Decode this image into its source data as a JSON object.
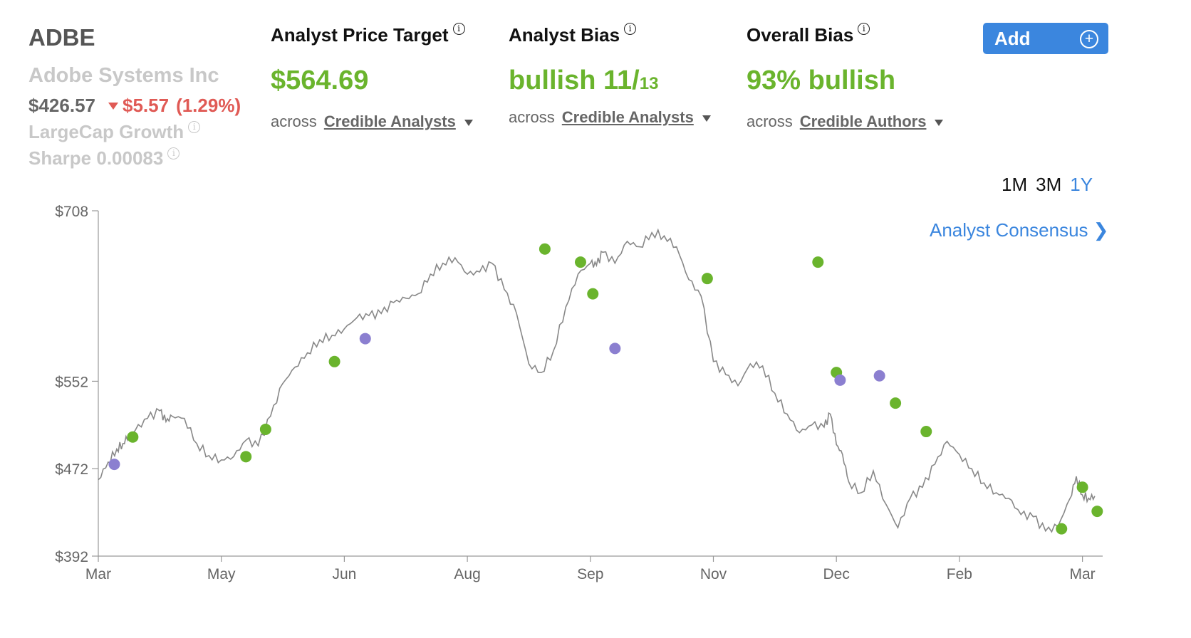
{
  "stock": {
    "ticker": "ADBE",
    "company": "Adobe Systems Inc",
    "price": "$426.57",
    "change": "$5.57",
    "change_pct": "(1.29%)",
    "category": "LargeCap Growth",
    "sharpe": "Sharpe 0.00083"
  },
  "metrics": [
    {
      "title": "Analyst Price Target",
      "value": "$564.69",
      "value_suffix": "",
      "across": "across",
      "link": "Credible Analysts"
    },
    {
      "title": "Analyst Bias",
      "value": "bullish 11/",
      "value_suffix": "13",
      "across": "across",
      "link": "Credible Analysts"
    },
    {
      "title": "Overall Bias",
      "value": "93% bullish",
      "value_suffix": "",
      "across": "across",
      "link": "Credible Authors"
    }
  ],
  "add_button": {
    "label": "Add",
    "icon": "plus-circle-icon"
  },
  "time_ranges": [
    "1M",
    "3M",
    "1Y"
  ],
  "active_range": "1Y",
  "consensus_link": "Analyst Consensus",
  "colors": {
    "accent": "#3b86de",
    "bullish": "#6ab42d",
    "bearish": "#e05a55",
    "neutral_dot": "#8b7fd0",
    "line": "#888888"
  },
  "chart_data": {
    "type": "line",
    "title": "",
    "xlabel": "",
    "ylabel": "",
    "ylim": [
      392,
      708
    ],
    "y_ticks": [
      "$708",
      "$552",
      "$472",
      "$392"
    ],
    "x_ticks": [
      "Mar",
      "May",
      "Jun",
      "Aug",
      "Sep",
      "Nov",
      "Dec",
      "Feb",
      "Mar"
    ],
    "series": [
      {
        "name": "ADBE price",
        "x": [
          0,
          0.08,
          0.15,
          0.2,
          0.25,
          0.3,
          0.4,
          0.5,
          0.55,
          0.6,
          0.7,
          0.8,
          0.9,
          1.0,
          1.1,
          1.2,
          1.3,
          1.4,
          1.5,
          1.6,
          1.7,
          1.8,
          1.9,
          2.0,
          2.1,
          2.2,
          2.3,
          2.4,
          2.5,
          2.6,
          2.7,
          2.8,
          2.9,
          3.0,
          3.1,
          3.2,
          3.3,
          3.4,
          3.5,
          3.6,
          3.7,
          3.8,
          3.9,
          4.0,
          4.05,
          4.1,
          4.2,
          4.3,
          4.4,
          4.5,
          4.6,
          4.7,
          4.8,
          4.9,
          5.0,
          5.1,
          5.2,
          5.3,
          5.4,
          5.5,
          5.6,
          5.7,
          5.8,
          5.9,
          5.95,
          6.0,
          6.05,
          6.1,
          6.2,
          6.3,
          6.4,
          6.5,
          6.6,
          6.7,
          6.8,
          6.9,
          7.0,
          7.1,
          7.2,
          7.3,
          7.4,
          7.5,
          7.6,
          7.7,
          7.8,
          7.9,
          7.95,
          8.0,
          8.05,
          8.1
        ],
        "values": [
          462,
          478,
          490,
          495,
          503,
          507,
          518,
          525,
          515,
          520,
          518,
          495,
          484,
          480,
          483,
          498,
          493,
          520,
          550,
          565,
          578,
          590,
          594,
          600,
          610,
          612,
          614,
          624,
          628,
          632,
          650,
          660,
          665,
          650,
          652,
          660,
          636,
          614,
          568,
          560,
          580,
          620,
          650,
          660,
          658,
          670,
          660,
          680,
          675,
          688,
          685,
          675,
          645,
          630,
          570,
          558,
          548,
          568,
          566,
          541,
          522,
          505,
          512,
          510,
          522,
          494,
          485,
          460,
          450,
          470,
          440,
          418,
          445,
          455,
          476,
          497,
          485,
          472,
          459,
          450,
          445,
          430,
          428,
          415,
          419,
          445,
          465,
          448,
          445,
          447
        ]
      }
    ],
    "ratings": [
      {
        "x": 0.13,
        "value": 476,
        "type": "neutral"
      },
      {
        "x": 0.28,
        "value": 501,
        "type": "bullish"
      },
      {
        "x": 1.2,
        "value": 483,
        "type": "bullish"
      },
      {
        "x": 1.36,
        "value": 508,
        "type": "bullish"
      },
      {
        "x": 1.92,
        "value": 570,
        "type": "bullish"
      },
      {
        "x": 2.17,
        "value": 591,
        "type": "neutral"
      },
      {
        "x": 3.63,
        "value": 673,
        "type": "bullish"
      },
      {
        "x": 3.92,
        "value": 661,
        "type": "bullish"
      },
      {
        "x": 4.02,
        "value": 632,
        "type": "bullish"
      },
      {
        "x": 4.2,
        "value": 582,
        "type": "neutral"
      },
      {
        "x": 4.95,
        "value": 646,
        "type": "bullish"
      },
      {
        "x": 5.85,
        "value": 661,
        "type": "bullish"
      },
      {
        "x": 6.0,
        "value": 560,
        "type": "bullish"
      },
      {
        "x": 6.03,
        "value": 553,
        "type": "neutral"
      },
      {
        "x": 6.35,
        "value": 557,
        "type": "neutral"
      },
      {
        "x": 6.48,
        "value": 532,
        "type": "bullish"
      },
      {
        "x": 6.73,
        "value": 506,
        "type": "bullish"
      },
      {
        "x": 7.83,
        "value": 417,
        "type": "bullish"
      },
      {
        "x": 8.0,
        "value": 455,
        "type": "bullish"
      },
      {
        "x": 8.12,
        "value": 433,
        "type": "bullish"
      }
    ]
  }
}
